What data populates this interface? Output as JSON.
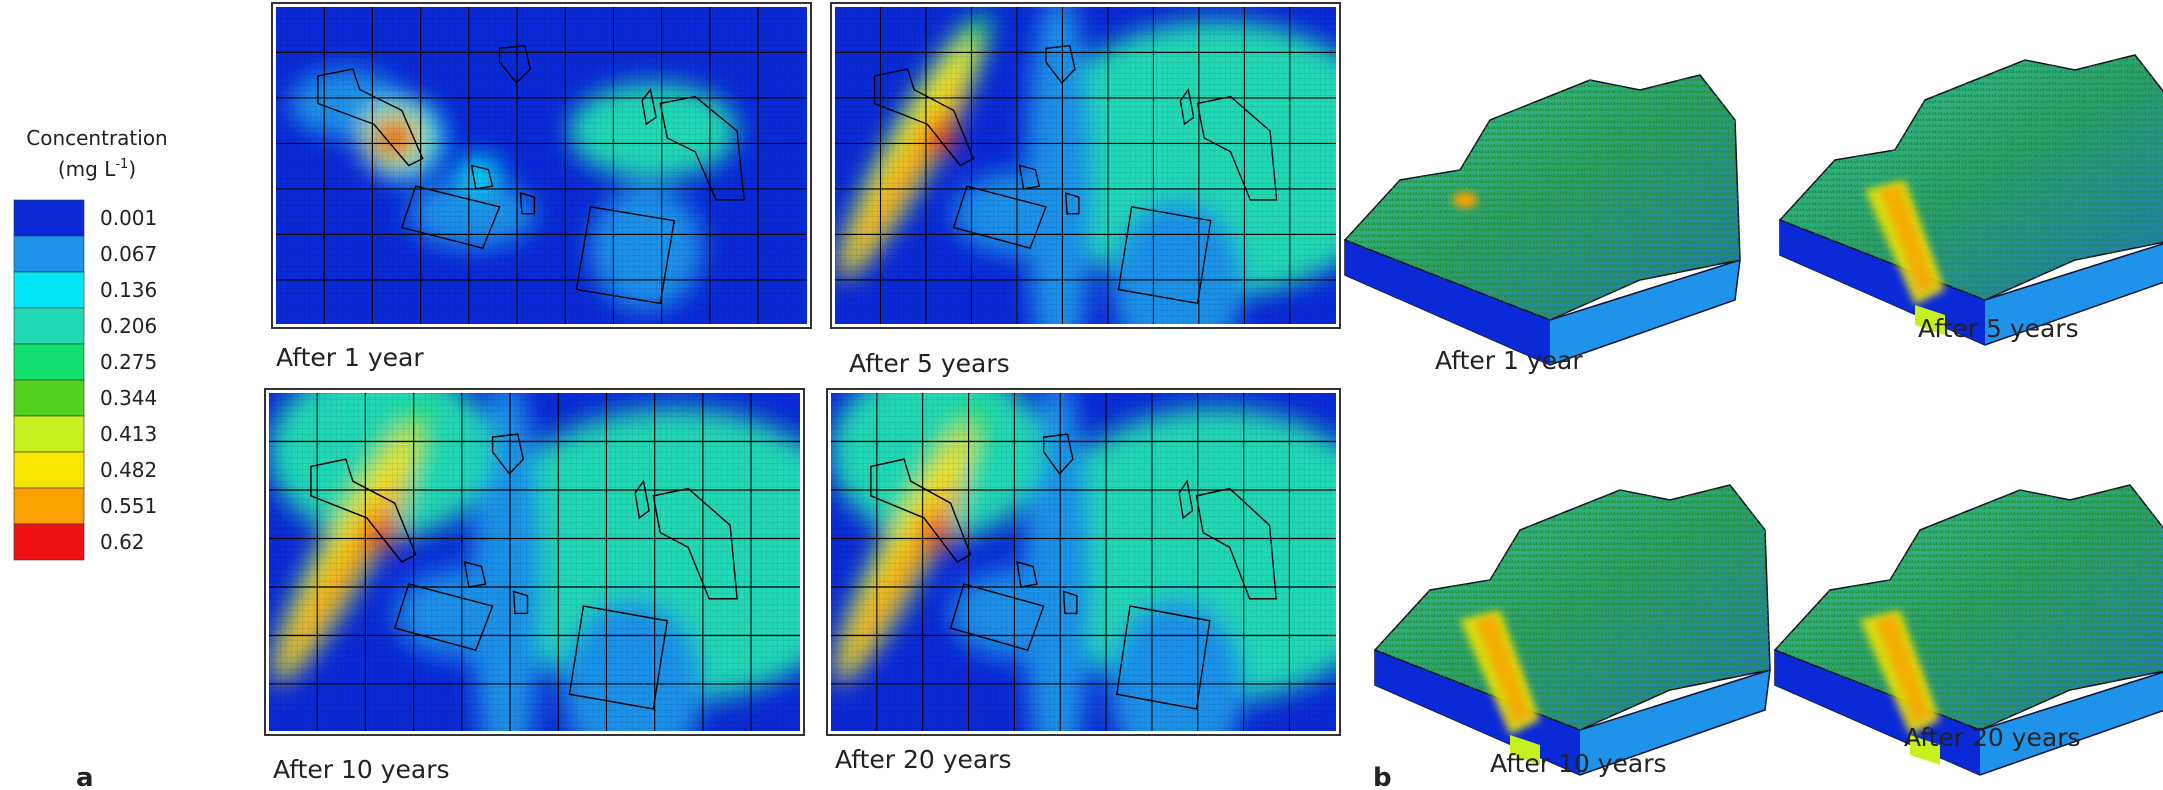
{
  "legend": {
    "title": "Concentration",
    "unit_prefix": "(mg L",
    "unit_exp": "-1",
    "unit_suffix": ")",
    "entries": [
      {
        "label": "0.001",
        "color": "#0a2ad8"
      },
      {
        "label": "0.067",
        "color": "#1f92ea"
      },
      {
        "label": "0.136",
        "color": "#04e6f6"
      },
      {
        "label": "0.206",
        "color": "#22d9b6"
      },
      {
        "label": "0.275",
        "color": "#12e06e"
      },
      {
        "label": "0.344",
        "color": "#52d11e"
      },
      {
        "label": "0.413",
        "color": "#c6f11e"
      },
      {
        "label": "0.482",
        "color": "#f8e600"
      },
      {
        "label": "0.551",
        "color": "#f9a100"
      },
      {
        "label": "0.62",
        "color": "#ef1212"
      }
    ]
  },
  "panel_a": {
    "label": "a",
    "captions": [
      "After 1 year",
      "After 5 years",
      "After 10 years",
      "After 20 years"
    ]
  },
  "panel_b": {
    "label": "b",
    "captions": [
      "After 1 year",
      "After 5 years",
      "After 10 years",
      "After 20 years"
    ]
  }
}
